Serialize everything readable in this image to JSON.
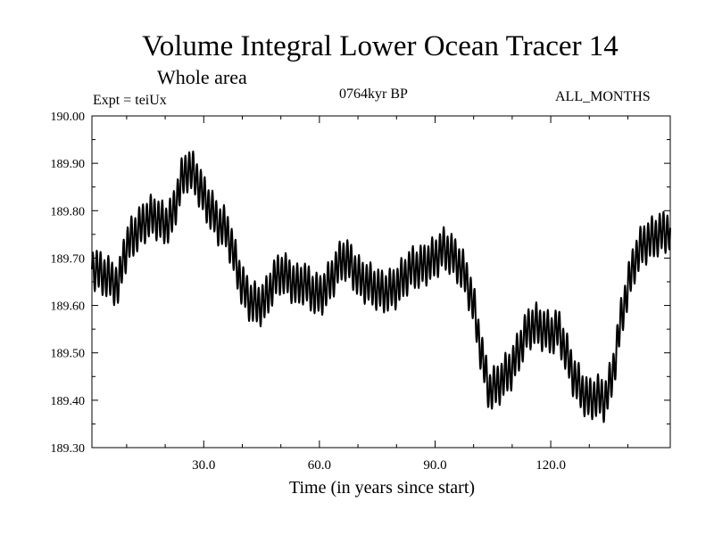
{
  "chart_data": {
    "type": "line",
    "title": "Volume Integral Lower Ocean Tracer 14",
    "subtitle": "Whole area",
    "experiment": "Expt = teiUx",
    "period": "0764kyr BP",
    "months": "ALL_MONTHS",
    "xlabel": "Time (in years since start)",
    "ylabel": "",
    "xlim": [
      1,
      151
    ],
    "ylim": [
      189.3,
      190.0
    ],
    "x_ticks": [
      30,
      60,
      90,
      120
    ],
    "x_tick_labels": [
      "30.0",
      "60.0",
      "90.0",
      "120.0"
    ],
    "x_minor_ticks": [
      10,
      20,
      40,
      50,
      70,
      80,
      100,
      110,
      130,
      140
    ],
    "y_ticks": [
      189.3,
      189.4,
      189.5,
      189.6,
      189.7,
      189.8,
      189.9,
      190.0
    ],
    "y_tick_labels": [
      "189.30",
      "189.40",
      "189.50",
      "189.60",
      "189.70",
      "189.80",
      "189.90",
      "190.00"
    ],
    "oscillation": "annual cycle, amplitude ~0.04",
    "series": [
      {
        "name": "Tracer 14",
        "color": "#000000",
        "x": [
          1,
          3,
          5,
          8,
          9,
          11,
          13,
          15,
          17,
          20,
          22,
          24,
          26,
          28,
          30,
          32,
          34,
          36,
          38,
          40,
          42,
          44,
          46,
          48,
          50,
          52,
          54,
          56,
          58,
          60,
          62,
          64,
          66,
          68,
          70,
          72,
          74,
          76,
          78,
          80,
          82,
          84,
          86,
          88,
          90,
          92,
          94,
          96,
          98,
          100,
          102,
          104,
          106,
          108,
          110,
          112,
          114,
          116,
          118,
          120,
          122,
          124,
          126,
          128,
          130,
          132,
          134,
          136,
          138,
          140,
          142,
          144,
          146,
          148,
          151
        ],
        "y": [
          189.68,
          189.67,
          189.66,
          189.64,
          189.7,
          189.74,
          189.76,
          189.78,
          189.79,
          189.77,
          189.79,
          189.86,
          189.89,
          189.87,
          189.83,
          189.8,
          189.77,
          189.76,
          189.7,
          189.64,
          189.61,
          189.6,
          189.61,
          189.65,
          189.67,
          189.66,
          189.64,
          189.65,
          189.63,
          189.62,
          189.64,
          189.67,
          189.7,
          189.69,
          189.66,
          189.65,
          189.64,
          189.63,
          189.63,
          189.64,
          189.66,
          189.68,
          189.68,
          189.69,
          189.7,
          189.72,
          189.71,
          189.69,
          189.66,
          189.6,
          189.5,
          189.42,
          189.43,
          189.45,
          189.47,
          189.51,
          189.55,
          189.56,
          189.55,
          189.54,
          189.55,
          189.5,
          189.45,
          189.42,
          189.4,
          189.41,
          189.4,
          189.45,
          189.56,
          189.64,
          189.7,
          189.73,
          189.74,
          189.75,
          189.76
        ]
      }
    ]
  }
}
